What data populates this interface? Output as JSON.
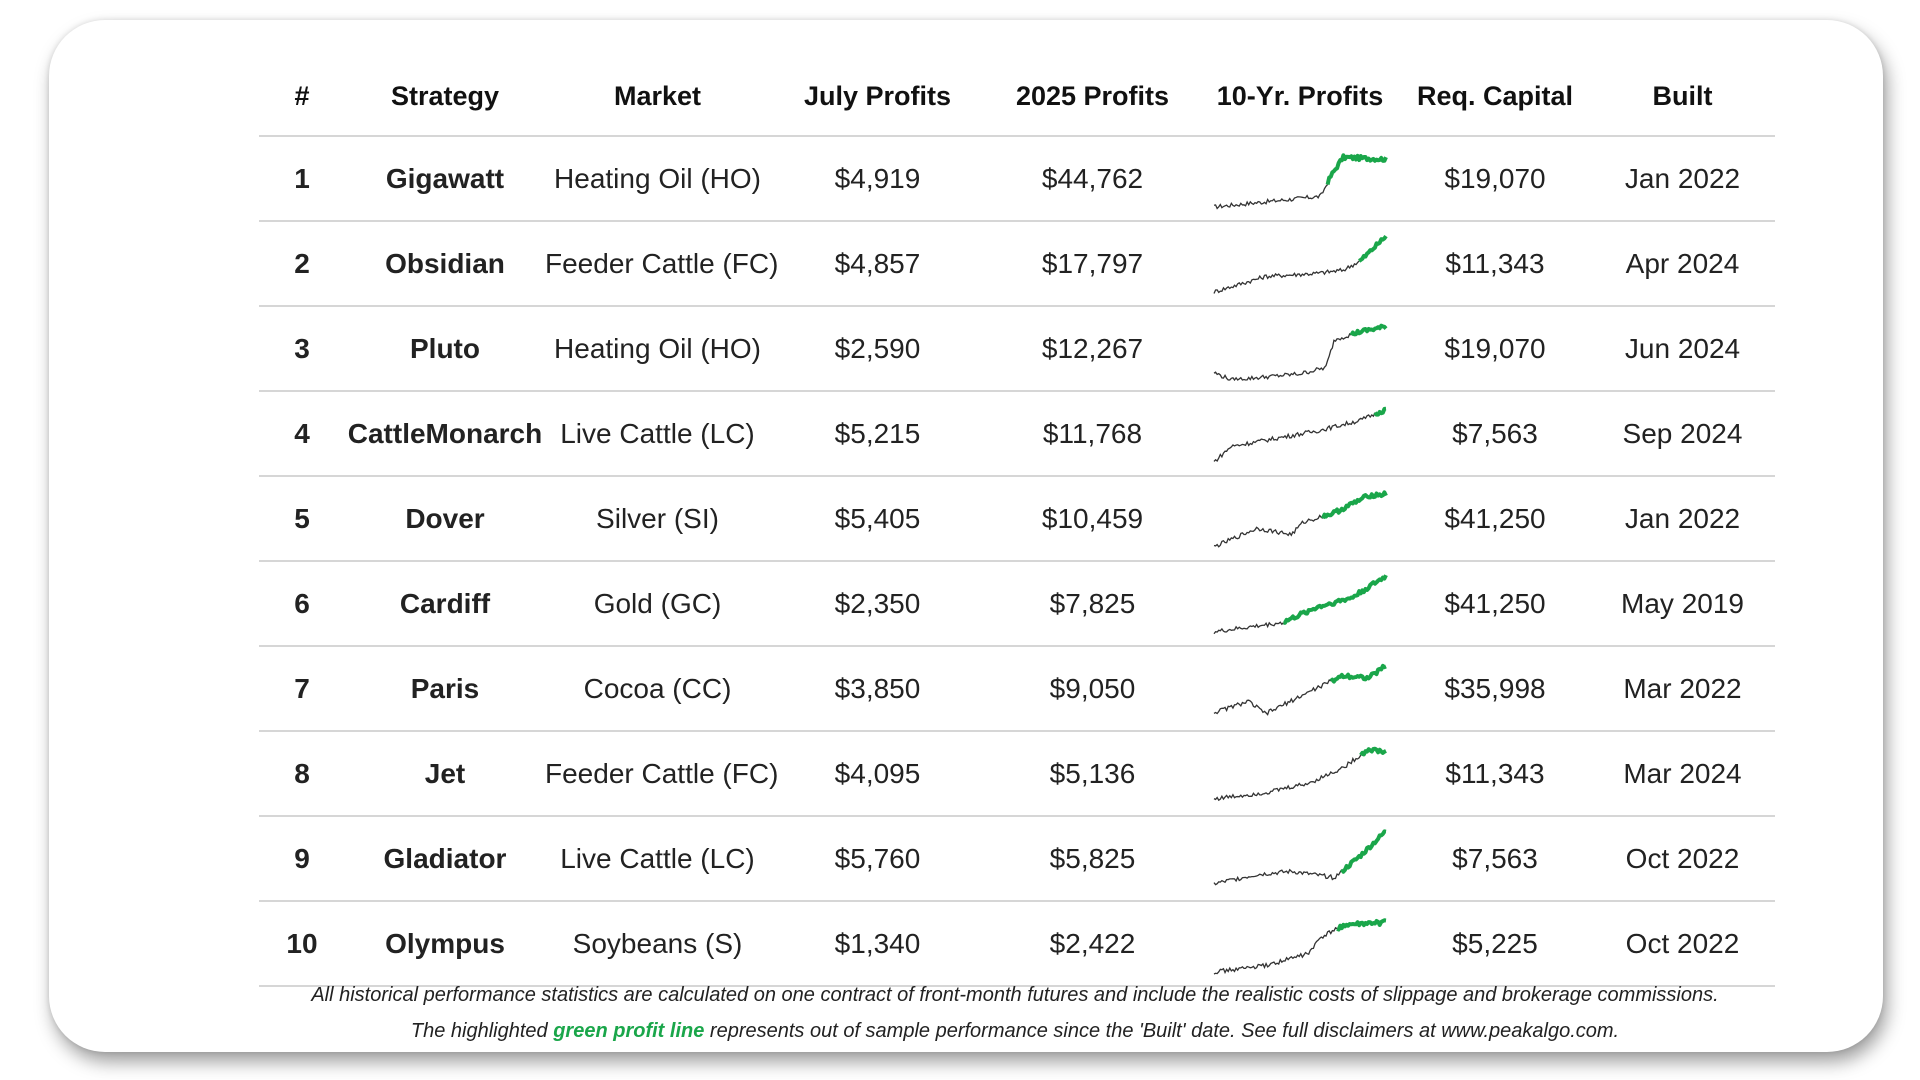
{
  "table": {
    "headers": [
      "#",
      "Strategy",
      "Market",
      "July Profits",
      "2025 Profits",
      "10-Yr. Profits",
      "Req. Capital",
      "Built"
    ],
    "rows": [
      {
        "rank": "1",
        "strategy": "Gigawatt",
        "market": "Heating Oil (HO)",
        "july": "$4,919",
        "ytd": "$44,762",
        "capital": "$19,070",
        "built": "Jan 2022"
      },
      {
        "rank": "2",
        "strategy": "Obsidian",
        "market": "Feeder Cattle (FC)",
        "july": "$4,857",
        "ytd": "$17,797",
        "capital": "$11,343",
        "built": "Apr 2024"
      },
      {
        "rank": "3",
        "strategy": "Pluto",
        "market": "Heating Oil (HO)",
        "july": "$2,590",
        "ytd": "$12,267",
        "capital": "$19,070",
        "built": "Jun 2024"
      },
      {
        "rank": "4",
        "strategy": "CattleMonarch",
        "market": "Live Cattle (LC)",
        "july": "$5,215",
        "ytd": "$11,768",
        "capital": "$7,563",
        "built": "Sep 2024"
      },
      {
        "rank": "5",
        "strategy": "Dover",
        "market": "Silver (SI)",
        "july": "$5,405",
        "ytd": "$10,459",
        "capital": "$41,250",
        "built": "Jan 2022"
      },
      {
        "rank": "6",
        "strategy": "Cardiff",
        "market": "Gold (GC)",
        "july": "$2,350",
        "ytd": "$7,825",
        "capital": "$41,250",
        "built": "May 2019"
      },
      {
        "rank": "7",
        "strategy": "Paris",
        "market": "Cocoa (CC)",
        "july": "$3,850",
        "ytd": "$9,050",
        "capital": "$35,998",
        "built": "Mar 2022"
      },
      {
        "rank": "8",
        "strategy": "Jet",
        "market": "Feeder Cattle (FC)",
        "july": "$4,095",
        "ytd": "$5,136",
        "capital": "$11,343",
        "built": "Mar 2024"
      },
      {
        "rank": "9",
        "strategy": "Gladiator",
        "market": "Live Cattle (LC)",
        "july": "$5,760",
        "ytd": "$5,825",
        "capital": "$7,563",
        "built": "Oct 2022"
      },
      {
        "rank": "10",
        "strategy": "Olympus",
        "market": "Soybeans (S)",
        "july": "$1,340",
        "ytd": "$2,422",
        "capital": "$5,225",
        "built": "Oct 2022"
      }
    ]
  },
  "footer": {
    "line1": "All historical performance statistics are calculated on one contract of front-month futures and include the realistic costs of slippage and brokerage commissions.",
    "line2_pre": "The highlighted",
    "line2_highlight": "green profit line",
    "line2_post": "represents out of sample performance since the 'Built' date. See full disclaimers at www.peakalgo.com."
  },
  "colors": {
    "profit_green": "#1aa64a",
    "spark_line": "#333333",
    "row_divider": "#d6d6d6"
  }
}
